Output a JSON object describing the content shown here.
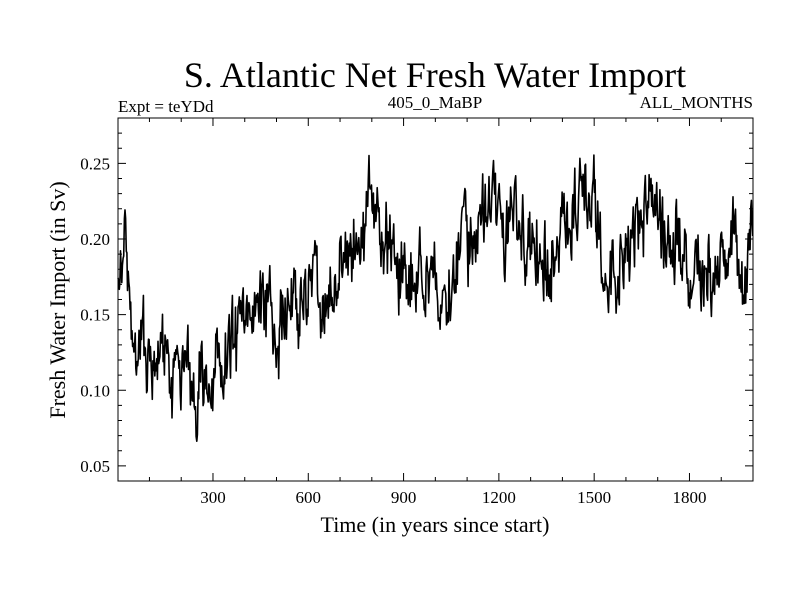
{
  "chart_data": {
    "type": "line",
    "title": "S. Atlantic Net Fresh Water Import",
    "subtitle_left": "Expt = teYDd",
    "subtitle_center": "405_0_MaBP",
    "subtitle_right": "ALL_MONTHS",
    "xlabel": "Time (in years since start)",
    "ylabel": "Fresh Water Import (in Sv)",
    "xlim": [
      1,
      2000
    ],
    "ylim": [
      0.04,
      0.28
    ],
    "xticks": [
      300,
      600,
      900,
      1200,
      1500,
      1800
    ],
    "xtick_labels": [
      "300",
      "600",
      "900",
      "1200",
      "1500",
      "1800"
    ],
    "yticks": [
      0.05,
      0.1,
      0.15,
      0.2,
      0.25
    ],
    "ytick_labels": [
      "0.05",
      "0.10",
      "0.15",
      "0.20",
      "0.25"
    ],
    "line_color": "#000000",
    "series": [
      {
        "name": "Fresh Water Import",
        "x": [
          1,
          30,
          60,
          90,
          120,
          150,
          180,
          210,
          240,
          270,
          300,
          330,
          360,
          390,
          420,
          450,
          480,
          510,
          540,
          570,
          600,
          630,
          660,
          690,
          720,
          750,
          780,
          800,
          830,
          860,
          890,
          920,
          950,
          980,
          1010,
          1040,
          1070,
          1100,
          1130,
          1160,
          1190,
          1220,
          1250,
          1280,
          1310,
          1340,
          1370,
          1400,
          1430,
          1460,
          1490,
          1520,
          1550,
          1580,
          1610,
          1640,
          1670,
          1700,
          1730,
          1760,
          1790,
          1820,
          1850,
          1880,
          1910,
          1940,
          1970,
          2000
        ],
        "y": [
          0.16,
          0.19,
          0.13,
          0.12,
          0.11,
          0.12,
          0.1,
          0.11,
          0.1,
          0.11,
          0.1,
          0.12,
          0.13,
          0.14,
          0.15,
          0.16,
          0.15,
          0.14,
          0.16,
          0.15,
          0.17,
          0.16,
          0.15,
          0.17,
          0.19,
          0.2,
          0.21,
          0.24,
          0.2,
          0.19,
          0.18,
          0.18,
          0.17,
          0.18,
          0.17,
          0.16,
          0.19,
          0.2,
          0.21,
          0.22,
          0.22,
          0.21,
          0.22,
          0.21,
          0.2,
          0.19,
          0.18,
          0.21,
          0.22,
          0.23,
          0.22,
          0.2,
          0.18,
          0.19,
          0.2,
          0.21,
          0.22,
          0.21,
          0.2,
          0.19,
          0.18,
          0.19,
          0.18,
          0.17,
          0.19,
          0.2,
          0.18,
          0.2
        ]
      }
    ]
  }
}
